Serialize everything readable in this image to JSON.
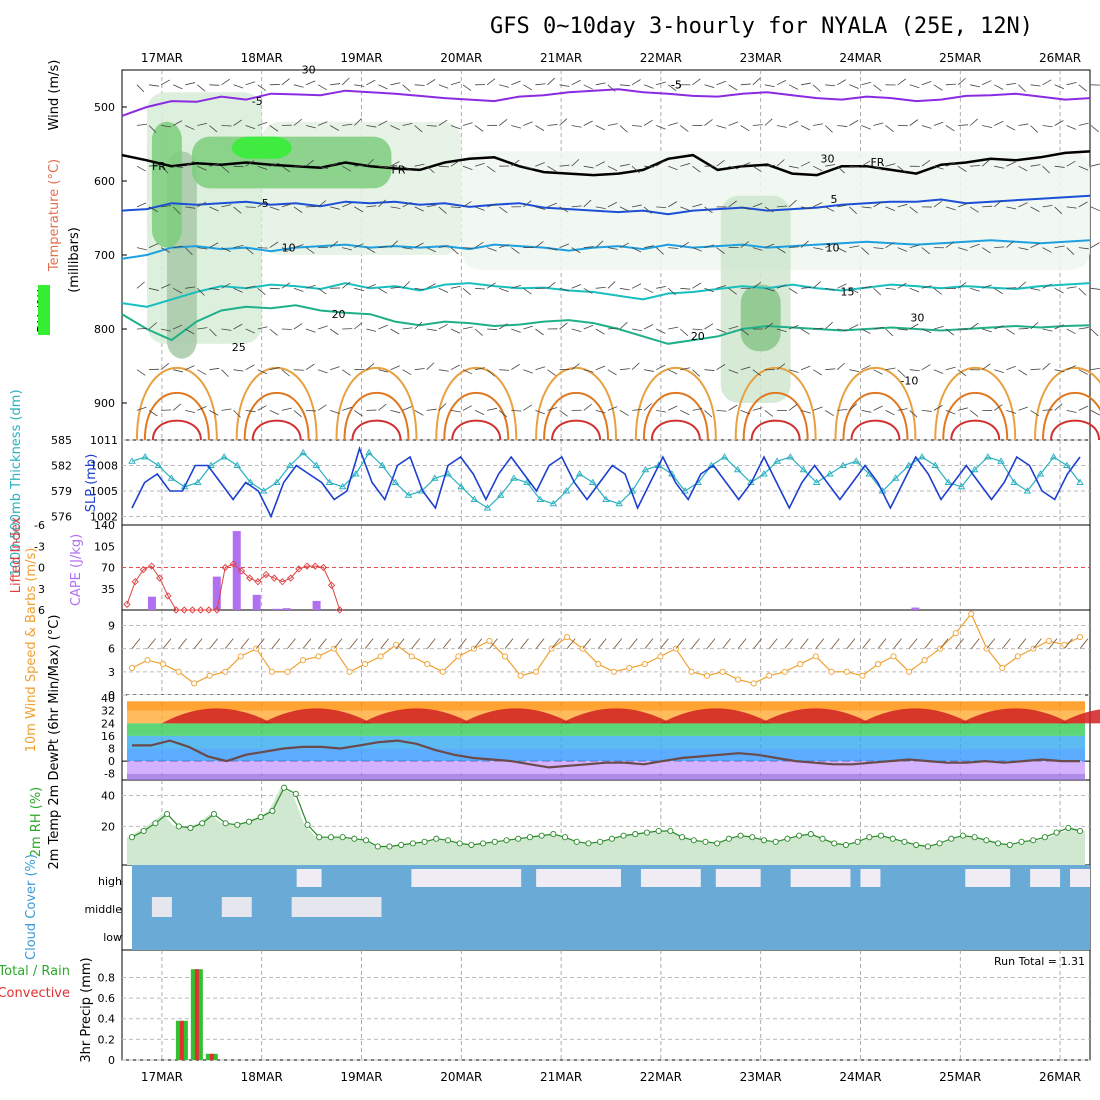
{
  "chart_data": {
    "type": "line",
    "title": "GFS 0~10day 3-hourly for NYALA (25E, 12N)",
    "dates": [
      "17MAR",
      "18MAR",
      "19MAR",
      "20MAR",
      "21MAR",
      "22MAR",
      "23MAR",
      "24MAR",
      "25MAR",
      "26MAR"
    ],
    "x_range_days": [
      -0.4,
      9.3
    ],
    "panels": {
      "upper_air": {
        "ylabel_rh": "RH (%)",
        "ylabel_temp": "Temperature (°C)",
        "ylabel_wind": "Wind (m/s)",
        "ylabel_p": "(millibars)",
        "ylim": [
          950,
          450
        ],
        "yticks": [
          "500",
          "600",
          "700",
          "800",
          "900"
        ],
        "isotherm_labels": [
          "-5",
          "-5",
          "FR",
          "FR",
          "FR",
          "-5",
          "5",
          "5",
          "10",
          "10",
          "15",
          "20",
          "20",
          "25",
          "30",
          "30",
          "30",
          "-10"
        ],
        "isotherms": [
          {
            "label": "-5",
            "color": "#8a2be2",
            "p": [
              512,
              500,
              492,
              493,
              486,
              490,
              482,
              483,
              484,
              478,
              480,
              482,
              485,
              488,
              490,
              492,
              486,
              484,
              480,
              478,
              476,
              480,
              482,
              485,
              486,
              482,
              480,
              484,
              488,
              490,
              486,
              488,
              492,
              490,
              485,
              484,
              482,
              486,
              490,
              488
            ]
          },
          {
            "label": "FR",
            "color": "#000000",
            "p": [
              565,
              572,
              580,
              576,
              578,
              575,
              578,
              580,
              582,
              575,
              580,
              583,
              585,
              575,
              570,
              568,
              580,
              588,
              590,
              592,
              590,
              585,
              570,
              565,
              585,
              580,
              578,
              590,
              592,
              580,
              580,
              585,
              590,
              578,
              575,
              570,
              572,
              568,
              562,
              560
            ]
          },
          {
            "label": "5",
            "color": "#1c4fd6",
            "p": [
              640,
              638,
              630,
              632,
              630,
              628,
              632,
              630,
              634,
              628,
              630,
              628,
              632,
              630,
              635,
              632,
              630,
              636,
              638,
              640,
              642,
              640,
              645,
              640,
              638,
              636,
              640,
              638,
              636,
              632,
              630,
              628,
              628,
              625,
              630,
              628,
              626,
              624,
              622,
              620
            ]
          },
          {
            "label": "10",
            "color": "#1ca0e0",
            "p": [
              705,
              700,
              690,
              688,
              692,
              690,
              695,
              690,
              688,
              686,
              690,
              688,
              690,
              688,
              692,
              686,
              688,
              690,
              694,
              690,
              688,
              692,
              686,
              690,
              688,
              686,
              690,
              688,
              686,
              684,
              682,
              684,
              686,
              684,
              682,
              680,
              682,
              684,
              682,
              680
            ]
          },
          {
            "label": "15",
            "color": "#19bfbf",
            "p": [
              765,
              770,
              760,
              750,
              742,
              745,
              740,
              742,
              746,
              738,
              745,
              742,
              748,
              740,
              738,
              742,
              745,
              744,
              748,
              750,
              755,
              760,
              752,
              750,
              746,
              742,
              745,
              740,
              745,
              748,
              744,
              740,
              742,
              745,
              742,
              744,
              746,
              742,
              740,
              738
            ]
          },
          {
            "label": "20",
            "color": "#1fb088",
            "p": [
              780,
              800,
              815,
              790,
              775,
              770,
              772,
              768,
              775,
              778,
              780,
              790,
              795,
              790,
              792,
              796,
              794,
              790,
              788,
              792,
              800,
              810,
              820,
              815,
              810,
              800,
              796,
              798,
              800,
              802,
              800,
              798,
              800,
              802,
              800,
              798,
              796,
              798,
              796,
              795
            ]
          }
        ]
      },
      "slp_thickness": {
        "ylabel_thickness": "1000-500mb Thickness (dm)",
        "ylabel_slp": "SLP (mb)",
        "thickness_ticks": [
          "585",
          "582",
          "579",
          "576"
        ],
        "slp_ticks": [
          "1011",
          "1008",
          "1005",
          "1002"
        ],
        "slp": [
          1003,
          1006,
          1007,
          1005,
          1005,
          1008,
          1008,
          1006,
          1004,
          1006,
          1005,
          1002,
          1006,
          1008,
          1007,
          1006,
          1004,
          1005,
          1010,
          1006,
          1004,
          1008,
          1009,
          1005,
          1003,
          1008,
          1009,
          1007,
          1004,
          1007,
          1009,
          1007,
          1005,
          1008,
          1009,
          1006,
          1004,
          1006,
          1008,
          1007,
          1003,
          1006,
          1009,
          1006,
          1004,
          1007,
          1008,
          1006,
          1004,
          1006,
          1009,
          1006,
          1003,
          1006,
          1008,
          1006,
          1004,
          1006,
          1008,
          1006,
          1003,
          1006,
          1009,
          1007,
          1004,
          1006,
          1008,
          1006,
          1004,
          1006,
          1009,
          1008,
          1005,
          1004,
          1007,
          1009
        ],
        "thickness": [
          582.5,
          583,
          582,
          580.5,
          579.5,
          580,
          582,
          583,
          582,
          580,
          579,
          580,
          582,
          583.5,
          582,
          580,
          579.5,
          581,
          583.5,
          582,
          580,
          578.5,
          579,
          580.5,
          581,
          579.5,
          578,
          577,
          578.5,
          580.5,
          580,
          578,
          577.5,
          579,
          581,
          580,
          578,
          577.5,
          579,
          581.5,
          582,
          581,
          579,
          580,
          582,
          583,
          581.5,
          580,
          581,
          582.5,
          583,
          581.5,
          580,
          581,
          582,
          582.5,
          581,
          579,
          580.5,
          582,
          583,
          582,
          580,
          579.5,
          581.5,
          583,
          582.5,
          580,
          579,
          581,
          583,
          582,
          580
        ]
      },
      "cape_li": {
        "ylabel_li": "Lifted Index",
        "ylabel_cape": "CAPE (J/kg)",
        "li_ticks": [
          "-6",
          "-3",
          "0",
          "3",
          "6"
        ],
        "cape_ticks": [
          "140",
          "105",
          "70",
          "35"
        ],
        "cape_bars": [
          {
            "day": -0.1,
            "value": 22
          },
          {
            "day": 0.55,
            "value": 55
          },
          {
            "day": 0.75,
            "value": 130
          },
          {
            "day": 0.95,
            "value": 25
          },
          {
            "day": 1.15,
            "value": 2
          },
          {
            "day": 1.25,
            "value": 3
          },
          {
            "day": 1.55,
            "value": 15
          },
          {
            "day": 7.55,
            "value": 4
          }
        ],
        "li": [
          5.2,
          2,
          0.3,
          -0.2,
          1.5,
          4,
          6,
          6,
          6,
          6,
          6,
          6,
          0,
          -0.5,
          0.5,
          1.5,
          2,
          1,
          1.5,
          2,
          1.5,
          0.2,
          -0.2,
          -0.2,
          0,
          2.5,
          6
        ]
      },
      "wind10m": {
        "ylabel": "10m Wind Speed & Barbs (m/s)",
        "yticks": [
          "9",
          "6",
          "3",
          "0"
        ],
        "speed": [
          3.5,
          4.5,
          4,
          3,
          1.5,
          2.5,
          3,
          5,
          6,
          3,
          3,
          4.5,
          5,
          6,
          3,
          4,
          5,
          6.5,
          5,
          4,
          3,
          5,
          6,
          7,
          5,
          2.5,
          3,
          6,
          7.5,
          6,
          4,
          3,
          3.5,
          4,
          5,
          6,
          3,
          2.5,
          3,
          2,
          1.5,
          2.5,
          3,
          4,
          5,
          3,
          3,
          2.5,
          4,
          5,
          3,
          4.5,
          6,
          8,
          10.5,
          6,
          3.5,
          5,
          6,
          7,
          6.5,
          7.5
        ]
      },
      "t2m": {
        "ylabel": "2m Temp 2m DewPt (6hr Min/Max) (°C)",
        "yticks": [
          "40",
          "32",
          "24",
          "16",
          "8",
          "0",
          "-8"
        ],
        "temp_min": 24,
        "temp_max": 38,
        "dewpt": [
          10,
          10,
          13,
          9,
          3,
          0,
          4,
          6,
          8,
          9,
          9,
          8,
          10,
          12,
          13,
          11,
          7,
          4,
          2,
          1,
          0,
          -2,
          -4,
          -3,
          -2,
          -1,
          -1,
          -2,
          0,
          2,
          3,
          4,
          5,
          4,
          2,
          0,
          -1,
          -2,
          -2,
          -1,
          0,
          1,
          0,
          -1,
          -1,
          0,
          -1,
          0,
          1,
          0,
          0
        ]
      },
      "rh2m": {
        "ylabel": "2m RH (%)",
        "yticks": [
          "40",
          "20"
        ],
        "rh": [
          13,
          17,
          22,
          28,
          20,
          19,
          22,
          28,
          22,
          21,
          23,
          26,
          30,
          45,
          41,
          21,
          13,
          13,
          13,
          12,
          11,
          7,
          7,
          8,
          9,
          10,
          12,
          11,
          9,
          8,
          9,
          10,
          11,
          12,
          13,
          14,
          15,
          13,
          10,
          9,
          10,
          12,
          14,
          15,
          16,
          17,
          17,
          13,
          11,
          10,
          9,
          12,
          14,
          13,
          11,
          10,
          12,
          14,
          15,
          12,
          9,
          8,
          10,
          13,
          14,
          12,
          10,
          8,
          7,
          9,
          12,
          14,
          13,
          11,
          9,
          8,
          10,
          11,
          13,
          16,
          19,
          17
        ]
      },
      "cloud": {
        "ylabel": "Cloud Cover (%)",
        "levels": [
          "high",
          "middle",
          "low"
        ]
      },
      "precip": {
        "ylabel_total": "Total / Rain",
        "ylabel_conv": "Convective",
        "ylabel": "3hr Precip (mm)",
        "yticks": [
          "0.8",
          "0.6",
          "0.4",
          "0.2",
          "0"
        ],
        "run_total_label": "Run Total = 1.31",
        "bars": [
          {
            "day": 0.2,
            "value": 0.38
          },
          {
            "day": 0.35,
            "value": 0.88
          },
          {
            "day": 0.5,
            "value": 0.06
          }
        ]
      }
    }
  }
}
